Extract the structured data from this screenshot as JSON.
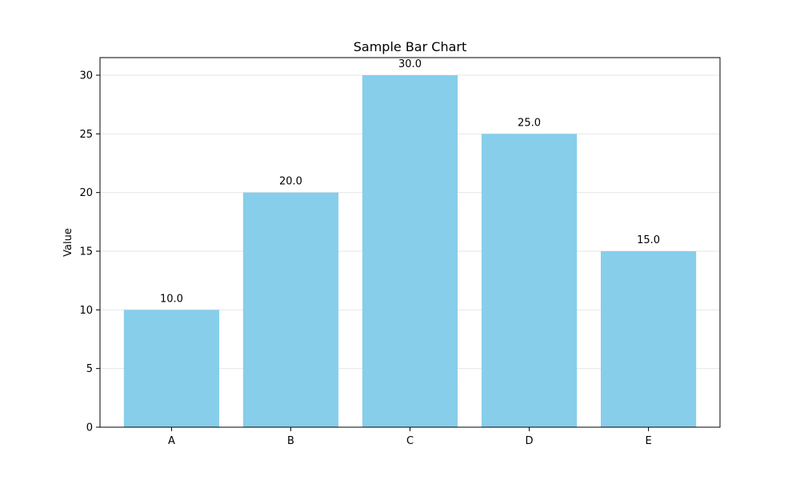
{
  "chart_data": {
    "type": "bar",
    "title": "Sample Bar Chart",
    "xlabel": "",
    "ylabel": "Value",
    "categories": [
      "A",
      "B",
      "C",
      "D",
      "E"
    ],
    "values": [
      10.0,
      20.0,
      30.0,
      25.0,
      15.0
    ],
    "value_labels": [
      "10.0",
      "20.0",
      "30.0",
      "25.0",
      "15.0"
    ],
    "ylim": [
      0,
      31.5
    ],
    "yticks": [
      0,
      5,
      10,
      15,
      20,
      25,
      30
    ],
    "grid": "y",
    "legend": "none",
    "colors": {
      "bar": "#87ceeb",
      "grid": "#e6e6e6",
      "axis": "#000000",
      "text": "#000000"
    }
  }
}
